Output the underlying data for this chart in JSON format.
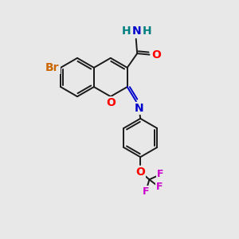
{
  "bg_color": "#e8e8e8",
  "bond_color": "#1a1a1a",
  "bond_lw": 1.4,
  "colors": {
    "O": "#ff0000",
    "N": "#0000cc",
    "Br": "#cc6600",
    "F": "#cc00cc",
    "H_amide": "#008080"
  },
  "font_size": 10,
  "font_size_br": 10,
  "font_size_f": 9
}
